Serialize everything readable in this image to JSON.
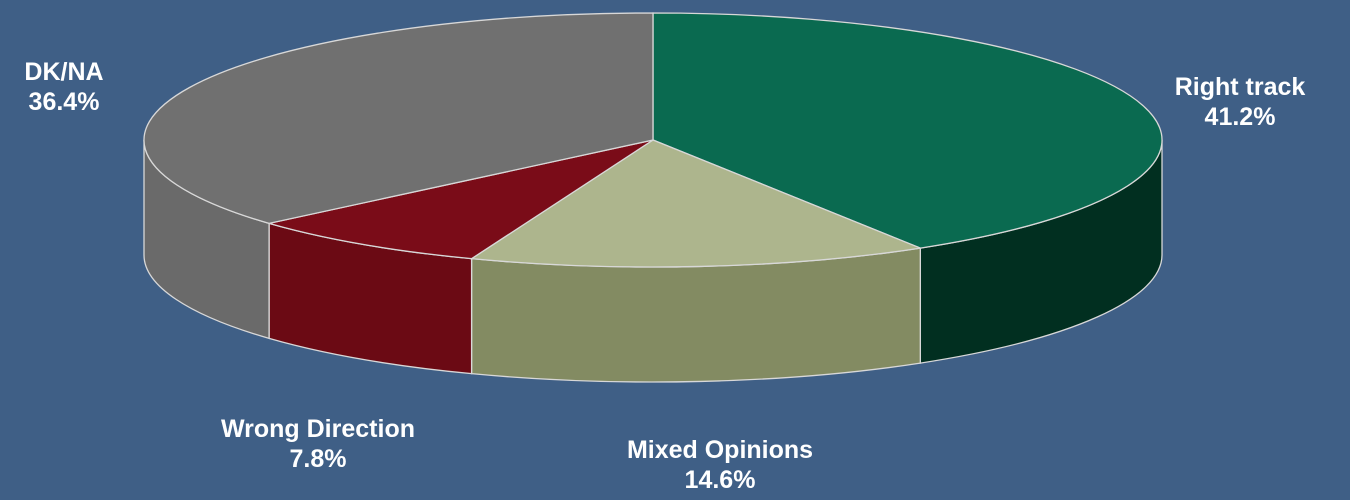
{
  "chart_data": {
    "type": "pie",
    "style": "3d",
    "background_color": "#3f5f86",
    "start": "top, clockwise",
    "slices": [
      {
        "label": "Right track",
        "value": 41.2,
        "value_label": "41.2%",
        "color": "#0a6a50",
        "side_color": "#012f20"
      },
      {
        "label": "Mixed Opinions",
        "value": 14.6,
        "value_label": "14.6%",
        "color": "#adb58d",
        "side_color": "#838b62"
      },
      {
        "label": "Wrong Direction",
        "value": 7.8,
        "value_label": "7.8%",
        "color": "#7a0c18",
        "side_color": "#6b0a14"
      },
      {
        "label": "DK/NA",
        "value": 36.4,
        "value_label": "36.4%",
        "color": "#707070",
        "side_color": "#6a6a6a"
      }
    ]
  }
}
